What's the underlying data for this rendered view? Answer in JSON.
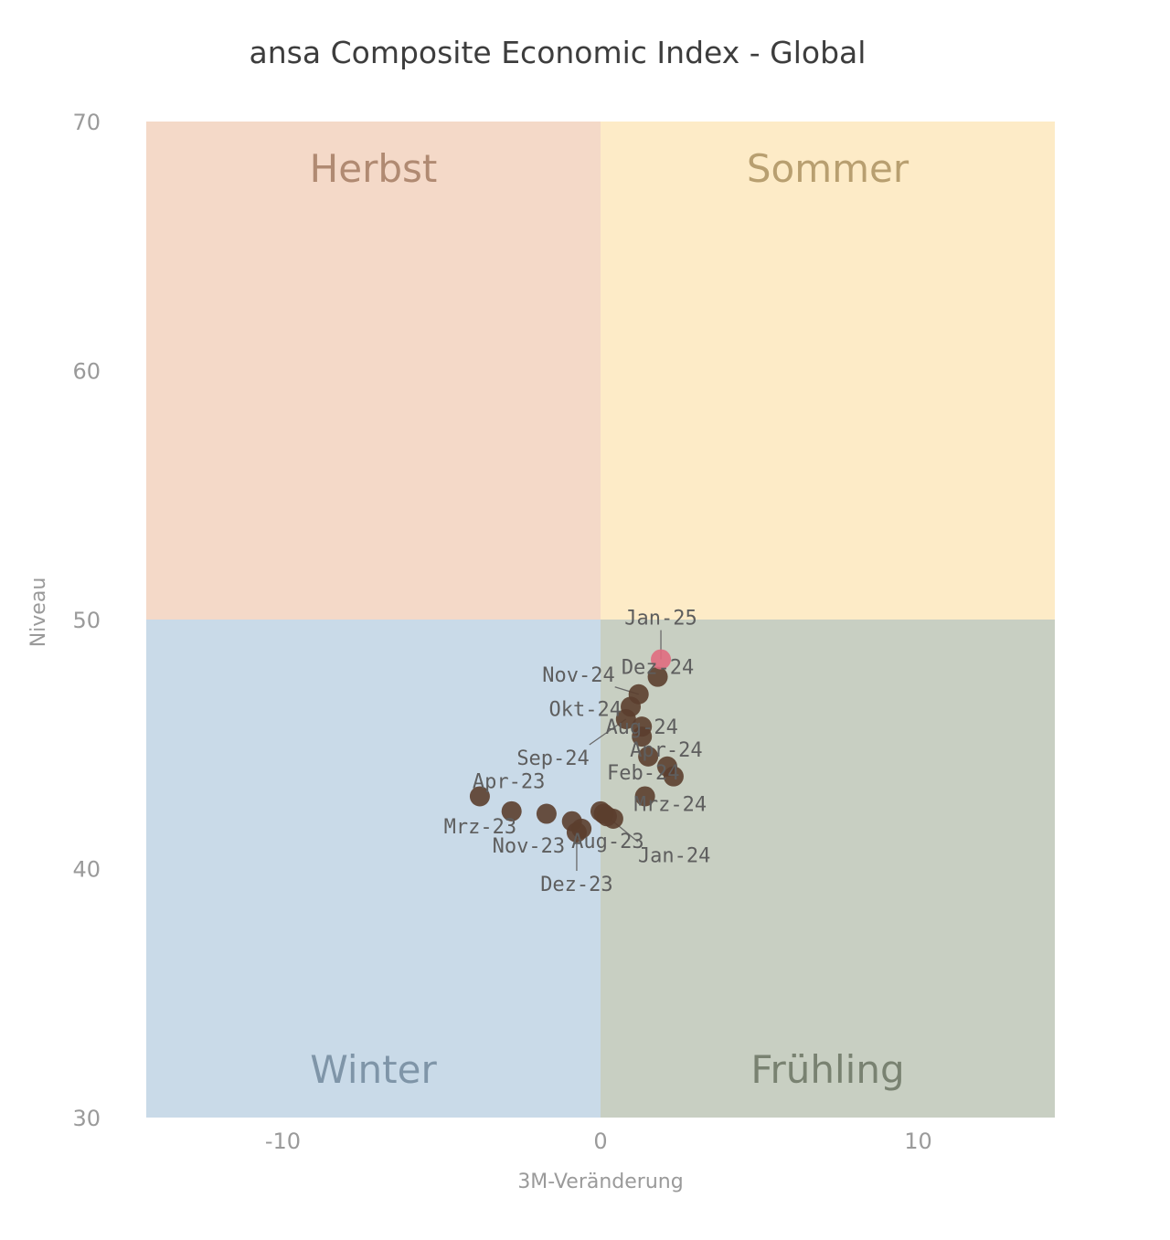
{
  "chart_data": {
    "type": "scatter",
    "title": "ansa Composite Economic Index - Global",
    "xlabel": "3M-Veränderung",
    "ylabel": "Niveau",
    "xlim": [
      -14.3,
      14.3
    ],
    "ylim": [
      30,
      70
    ],
    "x_ticks": [
      -10,
      0,
      10
    ],
    "y_ticks": [
      30,
      40,
      50,
      60,
      70
    ],
    "quadrants": [
      {
        "name": "Herbst",
        "x_range": [
          -14.3,
          0
        ],
        "y_range": [
          50,
          70
        ],
        "fill": "#f4d9c8",
        "text_color": "#b08a72"
      },
      {
        "name": "Sommer",
        "x_range": [
          0,
          14.3
        ],
        "y_range": [
          50,
          70
        ],
        "fill": "#fdebc7",
        "text_color": "#b89f70"
      },
      {
        "name": "Winter",
        "x_range": [
          -14.3,
          0
        ],
        "y_range": [
          30,
          50
        ],
        "fill": "#c9dae8",
        "text_color": "#7f95a8"
      },
      {
        "name": "Frühling",
        "x_range": [
          0,
          14.3
        ],
        "y_range": [
          30,
          50
        ],
        "fill": "#c8cfc2",
        "text_color": "#798271"
      }
    ],
    "point_color": "#5b3e2d",
    "highlight_color": "#e06b80",
    "points": [
      {
        "label": "Mrz-23",
        "x": -2.8,
        "y": 42.3
      },
      {
        "label": "Apr-23",
        "x": -3.8,
        "y": 42.9
      },
      {
        "label": "",
        "x": -1.7,
        "y": 42.2
      },
      {
        "label": "",
        "x": -0.9,
        "y": 41.9
      },
      {
        "label": "Aug-23",
        "x": 0.4,
        "y": 42.0
      },
      {
        "label": "",
        "x": 0.0,
        "y": 42.3
      },
      {
        "label": "",
        "x": 0.1,
        "y": 42.2
      },
      {
        "label": "Nov-23",
        "x": -0.6,
        "y": 41.6
      },
      {
        "label": "Dez-23",
        "x": -0.75,
        "y": 41.45
      },
      {
        "label": "Jan-24",
        "x": 0.2,
        "y": 42.1
      },
      {
        "label": "Feb-24",
        "x": 2.1,
        "y": 44.1
      },
      {
        "label": "Mrz-24",
        "x": 1.4,
        "y": 42.9
      },
      {
        "label": "Apr-24",
        "x": 1.5,
        "y": 44.5
      },
      {
        "label": "",
        "x": 2.3,
        "y": 43.7
      },
      {
        "label": "",
        "x": 1.3,
        "y": 45.3
      },
      {
        "label": "Aug-24",
        "x": 1.3,
        "y": 45.7
      },
      {
        "label": "Sep-24",
        "x": 0.8,
        "y": 46.0
      },
      {
        "label": "Okt-24",
        "x": 0.95,
        "y": 46.5
      },
      {
        "label": "Nov-24",
        "x": 1.2,
        "y": 47.0
      },
      {
        "label": "Dez-24",
        "x": 1.8,
        "y": 47.7
      },
      {
        "label": "Jan-25",
        "x": 1.9,
        "y": 48.4,
        "highlight": true
      }
    ]
  }
}
